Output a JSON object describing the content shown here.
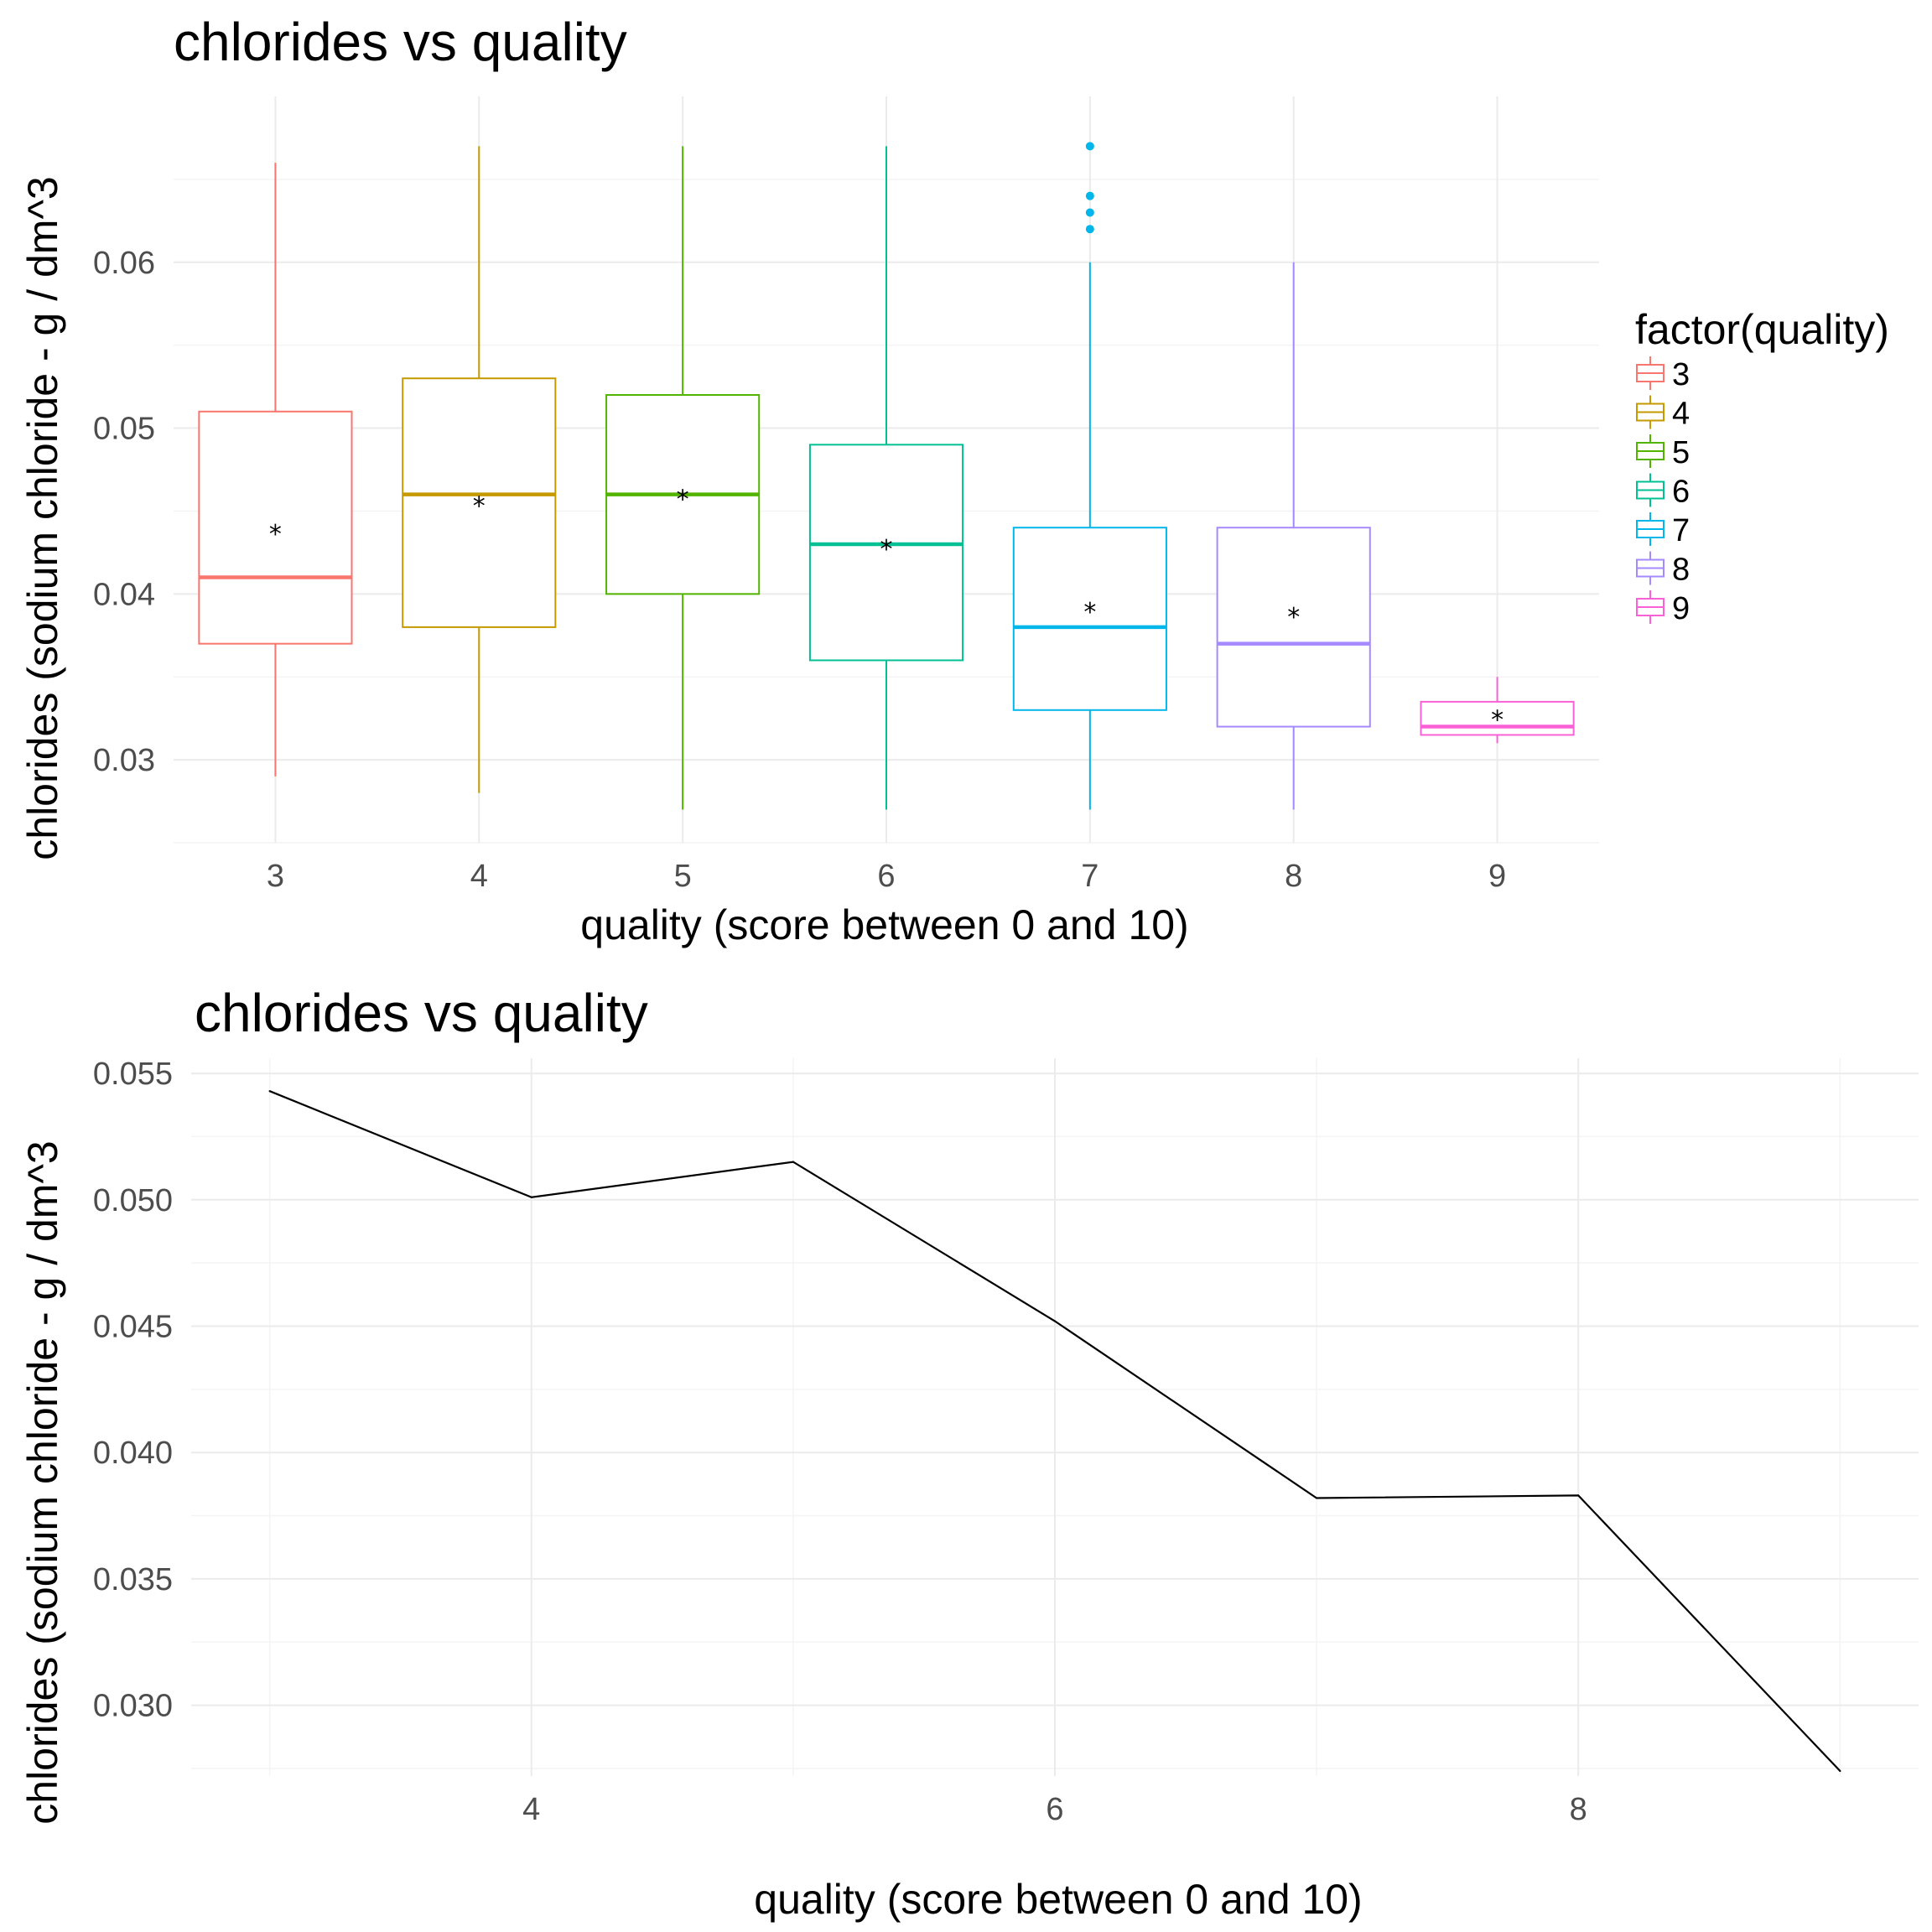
{
  "chart_data": [
    {
      "type": "box",
      "title": "chlorides vs quality",
      "xlabel": "quality (score between 0 and 10)",
      "ylabel": "chlorides (sodium chloride - g / dm^3",
      "categories": [
        "3",
        "4",
        "5",
        "6",
        "7",
        "8",
        "9"
      ],
      "ylim": [
        0.025,
        0.07
      ],
      "yticks": [
        "0.03",
        "0.04",
        "0.05",
        "0.06"
      ],
      "grid": true,
      "legend": {
        "title": "factor(quality)",
        "position": "right",
        "entries": [
          "3",
          "4",
          "5",
          "6",
          "7",
          "8",
          "9"
        ]
      },
      "colors": [
        "#f8766d",
        "#c49a00",
        "#53b400",
        "#00c094",
        "#00b6eb",
        "#a58aff",
        "#fb61d7"
      ],
      "boxes": [
        {
          "category": "3",
          "min": 0.029,
          "q1": 0.037,
          "median": 0.041,
          "q3": 0.051,
          "max": 0.066,
          "mean": 0.0439,
          "outliers": []
        },
        {
          "category": "4",
          "min": 0.028,
          "q1": 0.038,
          "median": 0.046,
          "q3": 0.053,
          "max": 0.067,
          "mean": 0.0456,
          "outliers": []
        },
        {
          "category": "5",
          "min": 0.027,
          "q1": 0.04,
          "median": 0.046,
          "q3": 0.052,
          "max": 0.067,
          "mean": 0.046,
          "outliers": []
        },
        {
          "category": "6",
          "min": 0.027,
          "q1": 0.036,
          "median": 0.043,
          "q3": 0.049,
          "max": 0.067,
          "mean": 0.043,
          "outliers": []
        },
        {
          "category": "7",
          "min": 0.027,
          "q1": 0.033,
          "median": 0.038,
          "q3": 0.044,
          "max": 0.06,
          "mean": 0.0392,
          "outliers": [
            0.062,
            0.063,
            0.064,
            0.067
          ]
        },
        {
          "category": "8",
          "min": 0.027,
          "q1": 0.032,
          "median": 0.037,
          "q3": 0.044,
          "max": 0.06,
          "mean": 0.0389,
          "outliers": []
        },
        {
          "category": "9",
          "min": 0.031,
          "q1": 0.0315,
          "median": 0.032,
          "q3": 0.0335,
          "max": 0.035,
          "mean": 0.0327,
          "outliers": []
        }
      ]
    },
    {
      "type": "line",
      "title": "chlorides vs quality",
      "xlabel": "quality (score between 0 and 10)",
      "ylabel": "chlorides (sodium chloride - g / dm^3",
      "x": [
        3,
        4,
        5,
        6,
        7,
        8,
        9
      ],
      "y": [
        0.0543,
        0.0501,
        0.0515,
        0.0452,
        0.0382,
        0.0383,
        0.0274
      ],
      "xlim": [
        2.7,
        9.3
      ],
      "ylim": [
        0.0272,
        0.0556
      ],
      "xticks": [
        "4",
        "6",
        "8"
      ],
      "yticks": [
        "0.030",
        "0.035",
        "0.040",
        "0.045",
        "0.050",
        "0.055"
      ],
      "grid": true,
      "line_color": "#000000"
    }
  ]
}
